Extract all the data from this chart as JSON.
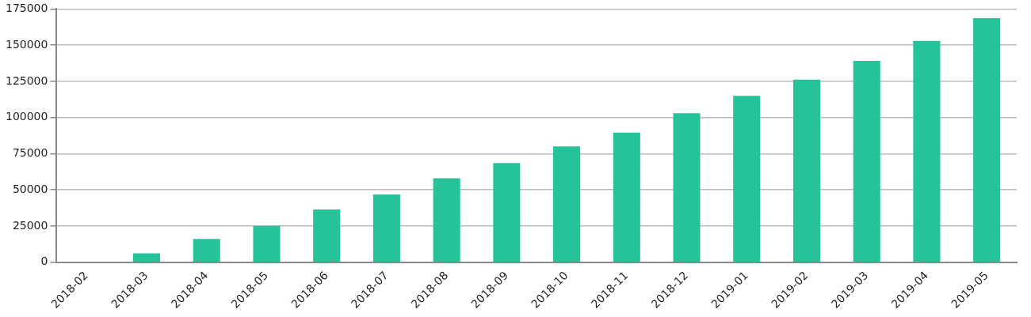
{
  "chart_data": {
    "type": "bar",
    "categories": [
      "2018-02",
      "2018-03",
      "2018-04",
      "2018-05",
      "2018-06",
      "2018-07",
      "2018-08",
      "2018-09",
      "2018-10",
      "2018-11",
      "2018-12",
      "2019-01",
      "2019-02",
      "2019-03",
      "2019-04",
      "2019-05"
    ],
    "values": [
      0,
      6100,
      16100,
      25100,
      36400,
      46900,
      58100,
      68600,
      80100,
      89600,
      103000,
      115000,
      126200,
      139100,
      153000,
      168700
    ],
    "color": "#26c29a",
    "ylim": [
      0,
      175000
    ],
    "yticks": [
      0,
      25000,
      50000,
      75000,
      100000,
      125000,
      150000,
      175000
    ],
    "grid": "y",
    "legend": false
  }
}
